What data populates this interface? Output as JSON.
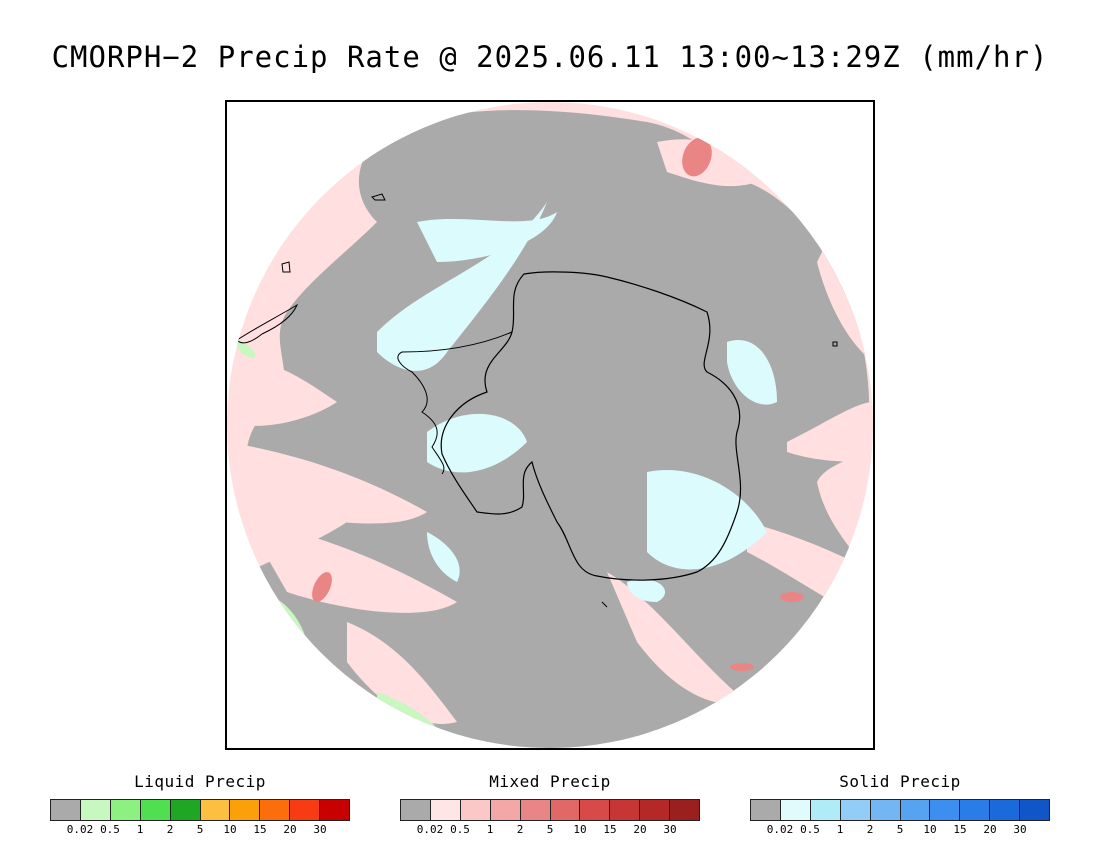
{
  "title": "CMORPH−2 Precip Rate @ 2025.06.11 13:00~13:29Z (mm/hr)",
  "map": {
    "projection": "south polar stereographic",
    "land_fill_color": "#aaaaaa",
    "mixed_light_color": "#ffdfdf",
    "solid_light_color": "#dcfbfd",
    "liquid_light_color": "#c8f7c0"
  },
  "legends": [
    {
      "id": "liquid",
      "title": "Liquid Precip",
      "colors": [
        "#aaaaaa",
        "#c7f8bf",
        "#8ff082",
        "#4fdf50",
        "#1fa723",
        "#fcbf3f",
        "#fca00a",
        "#fc6e0c",
        "#f73c14",
        "#c90000"
      ],
      "ticks": [
        "0.02",
        "0.5",
        "1",
        "2",
        "5",
        "10",
        "15",
        "20",
        "30"
      ]
    },
    {
      "id": "mixed",
      "title": "Mixed Precip",
      "colors": [
        "#aaaaaa",
        "#ffe6e6",
        "#fcc7c7",
        "#f3a7a7",
        "#ea8585",
        "#e26767",
        "#d84a4a",
        "#c83535",
        "#b52828",
        "#9c1f1f"
      ],
      "ticks": [
        "0.02",
        "0.5",
        "1",
        "2",
        "5",
        "10",
        "15",
        "20",
        "30"
      ]
    },
    {
      "id": "solid",
      "title": "Solid Precip",
      "colors": [
        "#aaaaaa",
        "#e1fbfd",
        "#b0ecf7",
        "#91cdf7",
        "#74b5f3",
        "#56a3f1",
        "#3c8ff0",
        "#2a7de9",
        "#1a6adc",
        "#1156c9"
      ],
      "ticks": [
        "0.02",
        "0.5",
        "1",
        "2",
        "5",
        "10",
        "15",
        "20",
        "30"
      ]
    }
  ]
}
